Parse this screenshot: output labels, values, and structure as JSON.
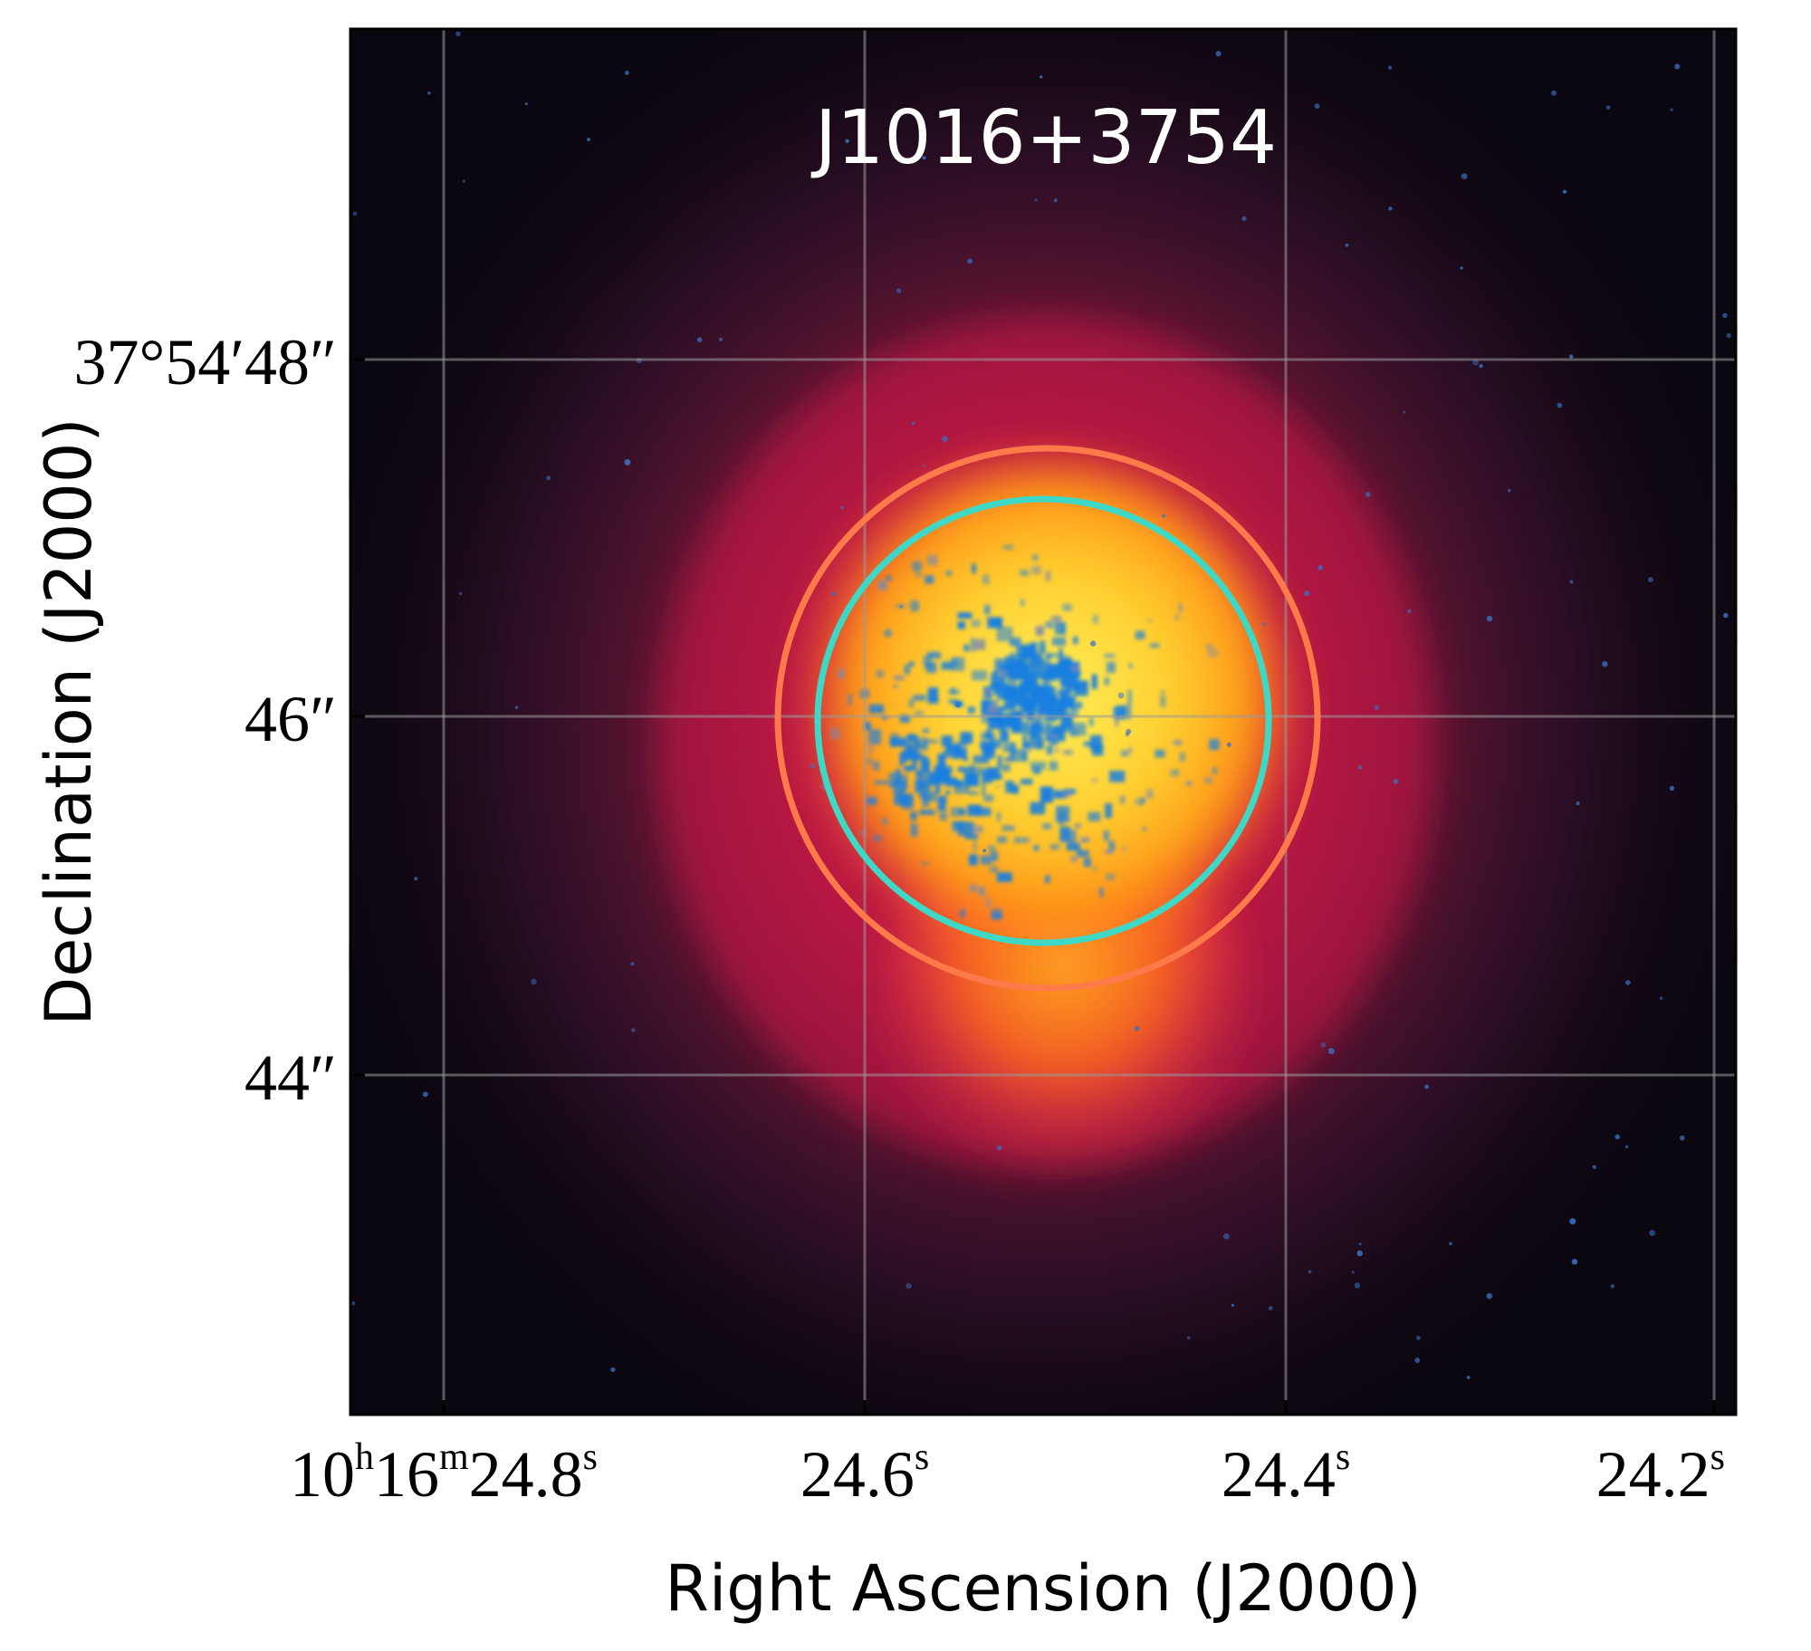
{
  "title": "J1016+3754",
  "axes": {
    "xlabel": "Right Ascension (J2000)",
    "ylabel": "Declination (J2000)"
  },
  "ra_ticks": [
    {
      "h": "10",
      "m": "16",
      "s": "24.8",
      "first": true
    },
    {
      "s": "24.6"
    },
    {
      "s": "24.4"
    },
    {
      "s": "24.2"
    }
  ],
  "dec_ticks": [
    {
      "deg": "37",
      "min": "54",
      "sec": "48",
      "first": true
    },
    {
      "sec": "46"
    },
    {
      "sec": "44"
    }
  ],
  "colors": {
    "background": "#0b0710",
    "outer_circle": "#ff7a4a",
    "inner_circle": "#3ed9c6",
    "blue_emission": "#1a7fe0",
    "grid": "#8a8a8a",
    "title": "#ffffff"
  }
}
